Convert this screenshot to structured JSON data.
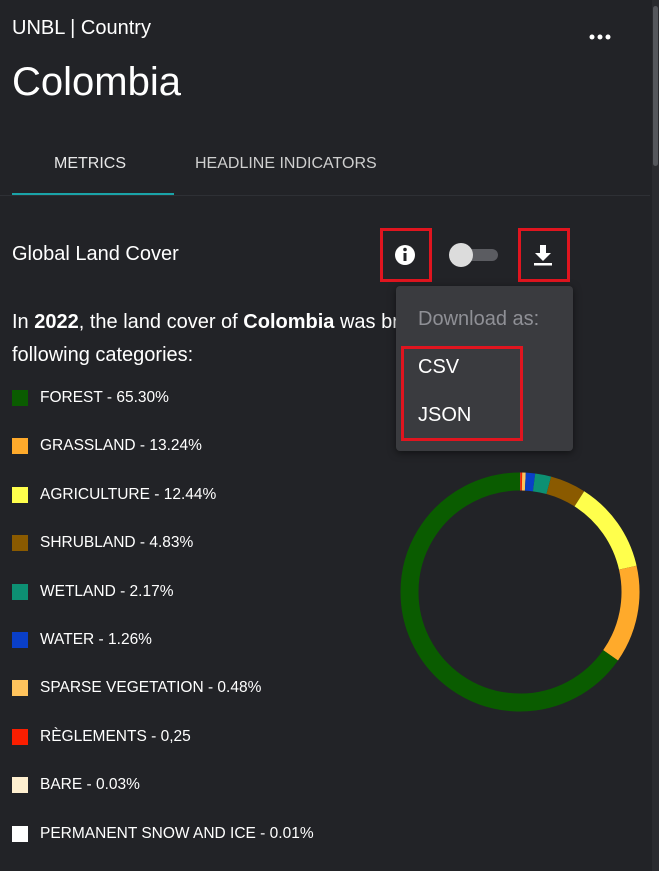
{
  "header": {
    "subtitle": "UNBL | Country",
    "title": "Colombia"
  },
  "tabs": [
    "METRICS",
    "HEADLINE INDICATORS"
  ],
  "section": {
    "title": "Global Land Cover"
  },
  "description": {
    "parts": [
      "In ",
      "2022",
      ", the land cover of ",
      "Colombia",
      " was broken down into the following categories:"
    ]
  },
  "menu": {
    "heading": "Download as:",
    "items": [
      "CSV",
      "JSON"
    ]
  },
  "chart_data": {
    "type": "pie",
    "categories": [
      "FOREST - 65.30%",
      "GRASSLAND - 13.24%",
      "AGRICULTURE - 12.44%",
      "SHRUBLAND - 4.83%",
      "WETLAND - 2.17%",
      "WATER - 1.26%",
      "SPARSE VEGETATION - 0.48%",
      "RÈGLEMENTS - 0,25",
      "BARE - 0.03%",
      "PERMANENT SNOW AND ICE - 0.01%"
    ],
    "values": [
      65.3,
      13.24,
      12.44,
      4.83,
      2.17,
      1.26,
      0.48,
      0.25,
      0.03,
      0.01
    ],
    "colors": [
      "#0a5c00",
      "#ffaa2b",
      "#ffff4c",
      "#8a5a00",
      "#0d9073",
      "#0a3fc8",
      "#ffc35c",
      "#fa1e00",
      "#fff0d0",
      "#ffffff"
    ]
  }
}
